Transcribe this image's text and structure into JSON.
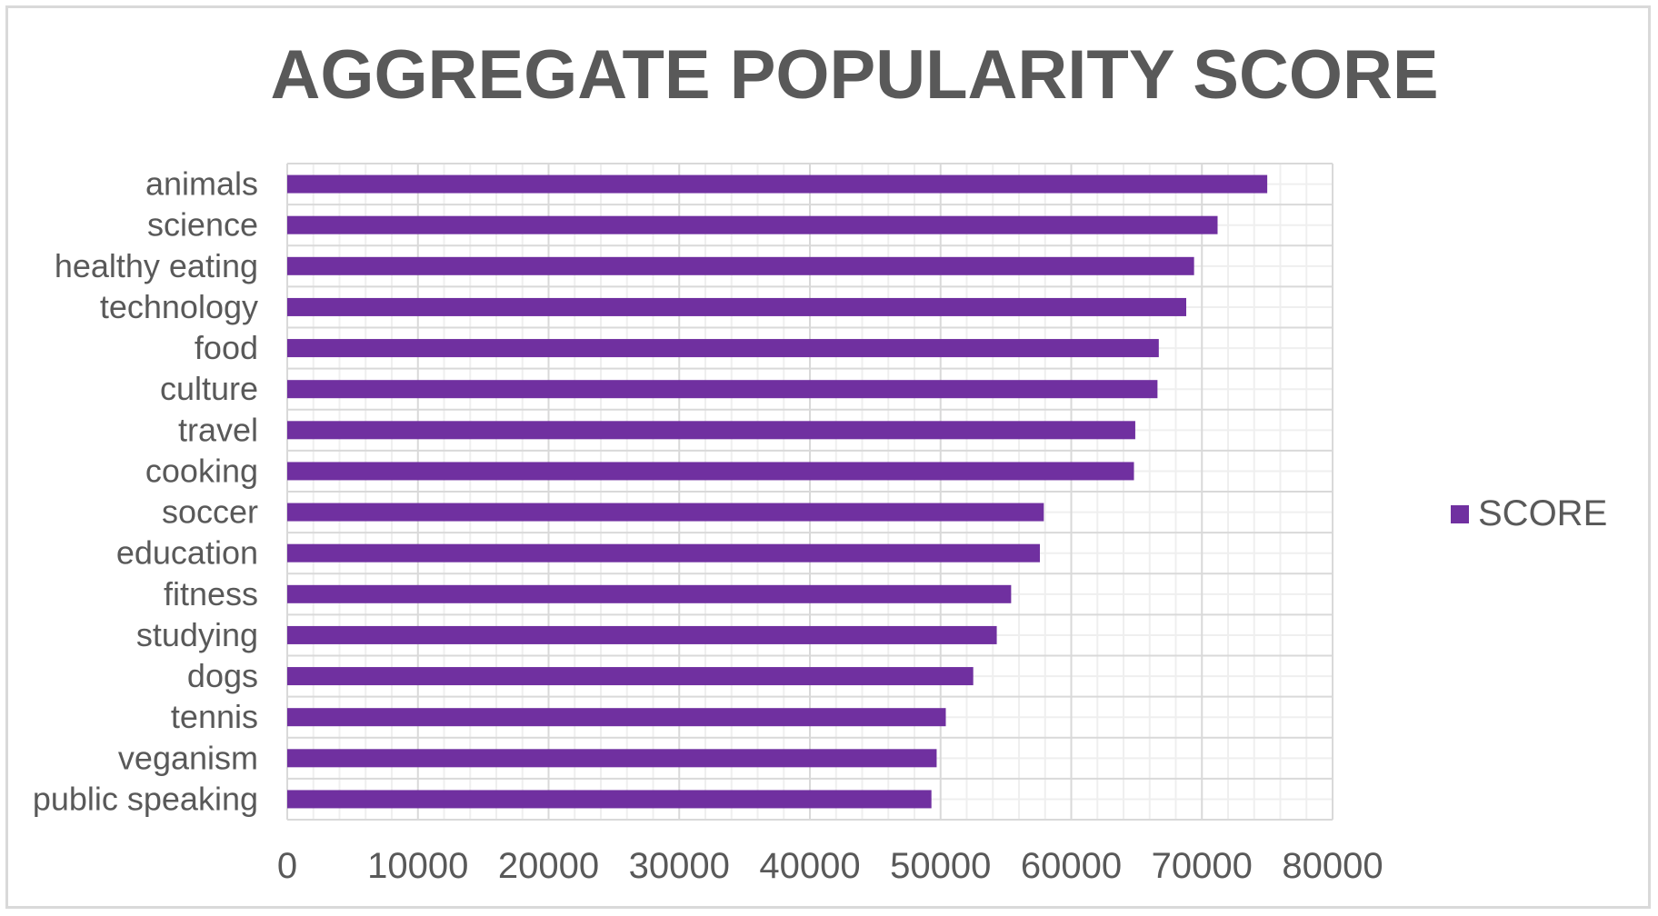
{
  "chart_data": {
    "type": "bar",
    "orientation": "horizontal",
    "title": "AGGREGATE POPULARITY SCORE",
    "xlabel": "",
    "ylabel": "",
    "categories": [
      "animals",
      "science",
      "healthy eating",
      "technology",
      "food",
      "culture",
      "travel",
      "cooking",
      "soccer",
      "education",
      "fitness",
      "studying",
      "dogs",
      "tennis",
      "veganism",
      "public speaking"
    ],
    "series": [
      {
        "name": "SCORE",
        "values": [
          75000,
          71200,
          69400,
          68800,
          66700,
          66600,
          64900,
          64800,
          57900,
          57600,
          55400,
          54300,
          52500,
          50400,
          49700,
          49300
        ]
      }
    ],
    "xlim": [
      0,
      80000
    ],
    "x_ticks": [
      "0",
      "10000",
      "20000",
      "30000",
      "40000",
      "50000",
      "60000",
      "70000",
      "80000"
    ],
    "grid": true,
    "minor_grid": true,
    "legend_position": "right",
    "colors": {
      "bar": "#7030a0",
      "text": "#595959",
      "major_grid": "#d9d9d9",
      "minor_grid": "#efefef"
    }
  }
}
